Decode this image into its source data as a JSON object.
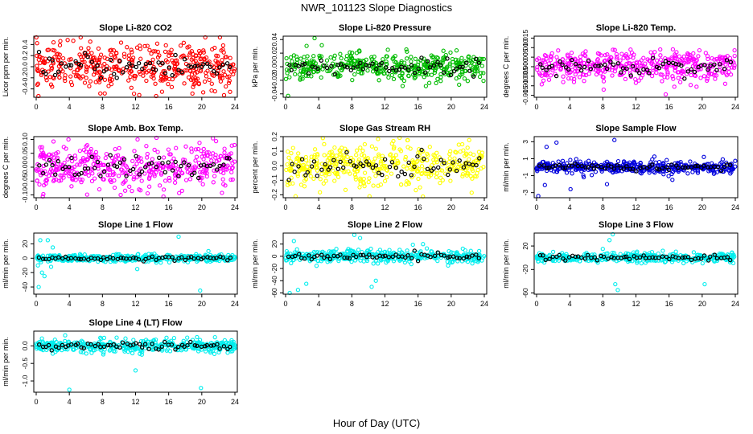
{
  "page_title": "NWR_101123  Slope Diagnostics",
  "xlabel_common": "Hour of Day (UTC)",
  "chart_data": [
    {
      "type": "scatter",
      "title": "Slope Li-820 CO2",
      "ylabel": "Licor ppm per min.",
      "color": "#ff0000",
      "xlim": [
        0,
        24
      ],
      "ylim": [
        -0.55,
        0.55
      ],
      "yticks": [
        -0.4,
        -0.2,
        0.0,
        0.2,
        0.4
      ],
      "ytick_labels": [
        "-0.4",
        "-0.2",
        "0.0",
        "0.2",
        "0.4"
      ],
      "spread": 0.2,
      "outliers": [
        [
          3.8,
          0.48
        ],
        [
          15.2,
          -0.45
        ],
        [
          6.4,
          -0.35
        ]
      ]
    },
    {
      "type": "scatter",
      "title": "Slope Li-820 Pressure",
      "ylabel": "kPa per min.",
      "color": "#00bb00",
      "xlim": [
        0,
        24
      ],
      "ylim": [
        -0.045,
        0.045
      ],
      "yticks": [
        -0.04,
        -0.02,
        0.0,
        0.02,
        0.04
      ],
      "ytick_labels": [
        "-0.04",
        "-0.02",
        "0.00",
        "0.02",
        "0.04"
      ],
      "spread": 0.01,
      "outliers": [
        [
          3.5,
          0.042
        ],
        [
          0.3,
          -0.043
        ]
      ]
    },
    {
      "type": "scatter",
      "title": "Slope Li-820 Temp.",
      "ylabel": "degrees C per min.",
      "color": "#ff00ff",
      "xlim": [
        0,
        24
      ],
      "ylim": [
        -0.016,
        0.016
      ],
      "yticks": [
        -0.015,
        -0.01,
        -0.005,
        0.0,
        0.005,
        0.01,
        0.015
      ],
      "ytick_labels": [
        "-0.015",
        "-0.010",
        "-0.005",
        "0.000",
        "0.005",
        "0.010",
        "0.015"
      ],
      "spread": 0.004,
      "outliers": [
        [
          15.6,
          -0.0145
        ],
        [
          8.1,
          -0.012
        ]
      ]
    },
    {
      "type": "scatter",
      "title": "Slope Amb. Box Temp.",
      "ylabel": "degrees C per min.",
      "color": "#ff00ff",
      "xlim": [
        0,
        24
      ],
      "ylim": [
        -0.11,
        0.11
      ],
      "yticks": [
        -0.1,
        -0.05,
        0.0,
        0.05,
        0.1
      ],
      "ytick_labels": [
        "-0.10",
        "-0.05",
        "0.00",
        "0.05",
        "0.10"
      ],
      "spread": 0.04,
      "outliers": [
        [
          3.9,
          0.1
        ],
        [
          10.2,
          -0.1
        ]
      ]
    },
    {
      "type": "scatter",
      "title": "Slope Gas Stream RH",
      "ylabel": "percent per min.",
      "color": "#ffff00",
      "xlim": [
        0,
        24
      ],
      "ylim": [
        -0.22,
        0.2
      ],
      "yticks": [
        -0.2,
        -0.1,
        0.0,
        0.1,
        0.2
      ],
      "ytick_labels": [
        "-0.2",
        "-0.1",
        "0.0",
        "0.1",
        "0.2"
      ],
      "spread": 0.07,
      "outliers": [
        [
          4.5,
          0.19
        ],
        [
          1.2,
          -0.21
        ]
      ]
    },
    {
      "type": "scatter",
      "title": "Slope Sample Flow",
      "ylabel": "ml/min per min.",
      "color": "#0000dd",
      "xlim": [
        0,
        24
      ],
      "ylim": [
        -3.6,
        3.6
      ],
      "yticks": [
        -3,
        -1,
        1,
        3
      ],
      "ytick_labels": [
        "-3",
        "-1",
        "1",
        "3"
      ],
      "spread": 0.35,
      "outliers": [
        [
          0.2,
          -3.4
        ],
        [
          1.2,
          2.4
        ],
        [
          2.4,
          2.9
        ],
        [
          9.4,
          3.2
        ],
        [
          1.0,
          -2.1
        ],
        [
          4.1,
          -2.6
        ],
        [
          8.5,
          -2.0
        ],
        [
          20.2,
          1.2
        ],
        [
          16.4,
          -1.5
        ]
      ]
    },
    {
      "type": "scatter",
      "title": "Slope Line 1 Flow",
      "ylabel": "ml/min per min.",
      "color": "#00eeee",
      "xlim": [
        0,
        24
      ],
      "ylim": [
        -50,
        35
      ],
      "yticks": [
        -40,
        -20,
        0,
        20
      ],
      "ytick_labels": [
        "-40",
        "-20",
        "0",
        "20"
      ],
      "spread": 2.5,
      "outliers": [
        [
          0.3,
          -40
        ],
        [
          0.5,
          25
        ],
        [
          1.4,
          25
        ],
        [
          2.0,
          15
        ],
        [
          1.0,
          -25
        ],
        [
          0.7,
          -20
        ],
        [
          17.2,
          30
        ],
        [
          19.8,
          -45
        ],
        [
          12.2,
          -15
        ],
        [
          20.8,
          10
        ],
        [
          0.2,
          -10
        ],
        [
          1.8,
          -12
        ]
      ]
    },
    {
      "type": "scatter",
      "title": "Slope Line 2 Flow",
      "ylabel": "ml/min per min.",
      "color": "#00eeee",
      "xlim": [
        0,
        24
      ],
      "ylim": [
        -62,
        38
      ],
      "yticks": [
        -60,
        -40,
        -20,
        0,
        20
      ],
      "ytick_labels": [
        "-60",
        "-40",
        "-20",
        "0",
        "20"
      ],
      "spread": 5,
      "outliers": [
        [
          0.5,
          -60
        ],
        [
          1.5,
          -55
        ],
        [
          2.5,
          -45
        ],
        [
          8.3,
          35
        ],
        [
          9.0,
          30
        ],
        [
          10.4,
          -50
        ],
        [
          10.9,
          -40
        ],
        [
          1.0,
          25
        ],
        [
          16.6,
          20
        ]
      ]
    },
    {
      "type": "scatter",
      "title": "Slope Line 3 Flow",
      "ylabel": "ml/min per min.",
      "color": "#00eeee",
      "xlim": [
        0,
        24
      ],
      "ylim": [
        -62,
        42
      ],
      "yticks": [
        -60,
        -20,
        20
      ],
      "ytick_labels": [
        "-60",
        "-20",
        "20"
      ],
      "spread": 4,
      "outliers": [
        [
          9.2,
          40
        ],
        [
          8.8,
          30
        ],
        [
          9.8,
          -55
        ],
        [
          9.5,
          -45
        ],
        [
          20.3,
          -45
        ],
        [
          8.0,
          15
        ],
        [
          2.0,
          10
        ]
      ]
    },
    {
      "type": "scatter",
      "title": "Slope Line 4 (LT) Flow",
      "ylabel": "ml/min per min.",
      "color": "#00eeee",
      "xlim": [
        0,
        24
      ],
      "ylim": [
        -1.32,
        0.42
      ],
      "yticks": [
        -1.0,
        -0.5,
        0.0
      ],
      "ytick_labels": [
        "-1.0",
        "-0.5",
        "0.0"
      ],
      "spread": 0.09,
      "outliers": [
        [
          4.0,
          -1.25
        ],
        [
          19.9,
          -1.2
        ],
        [
          12.0,
          -0.7
        ],
        [
          3.5,
          0.3
        ]
      ]
    }
  ],
  "xticks": [
    0,
    4,
    8,
    12,
    16,
    20,
    24
  ],
  "xtick_labels": [
    "0",
    "4",
    "8",
    "12",
    "16",
    "20",
    "24"
  ]
}
